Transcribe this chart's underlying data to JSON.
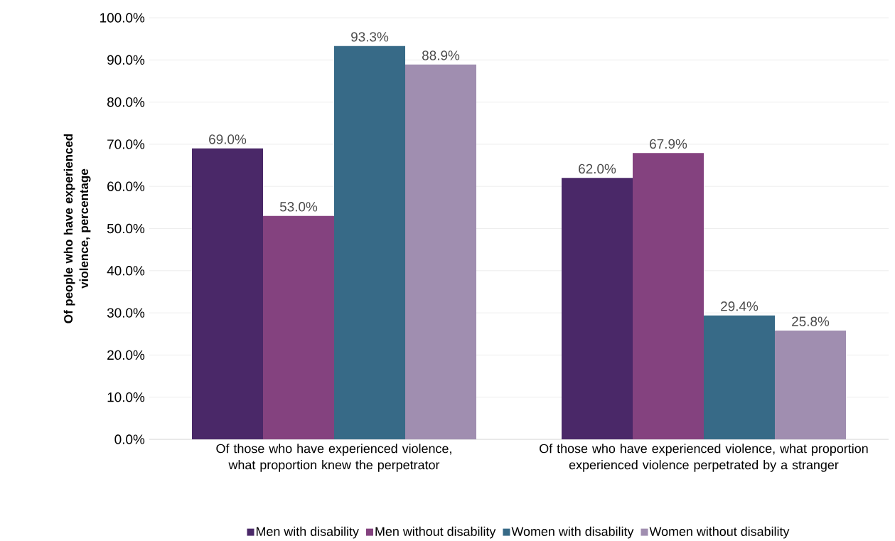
{
  "chart_data": {
    "type": "bar",
    "ylabel": "Of people who have experienced violence, percentage",
    "categories": [
      "Of those who have experienced violence, what proportion knew the perpetrator",
      "Of those who have experienced violence, what proportion experienced violence perpetrated by a stranger"
    ],
    "series": [
      {
        "name": "Men with disability",
        "color": "#4a2868",
        "values": [
          69.0,
          62.0
        ],
        "value_labels": [
          "69.0%",
          "62.0%"
        ]
      },
      {
        "name": "Men without disability",
        "color": "#84427f",
        "values": [
          53.0,
          67.9
        ],
        "value_labels": [
          "53.0%",
          "67.9%"
        ]
      },
      {
        "name": "Women with disability",
        "color": "#376a87",
        "values": [
          93.3,
          29.4
        ],
        "value_labels": [
          "93.3%",
          "29.4%"
        ]
      },
      {
        "name": "Women without disability",
        "color": "#a08eb0",
        "values": [
          88.9,
          25.8
        ],
        "value_labels": [
          "88.9%",
          "25.8%"
        ]
      }
    ],
    "ylim": [
      0,
      100
    ],
    "yticks": [
      {
        "value": 0,
        "label": "0.0%"
      },
      {
        "value": 10,
        "label": "10.0%"
      },
      {
        "value": 20,
        "label": "20.0%"
      },
      {
        "value": 30,
        "label": "30.0%"
      },
      {
        "value": 40,
        "label": "40.0%"
      },
      {
        "value": 50,
        "label": "50.0%"
      },
      {
        "value": 60,
        "label": "60.0%"
      },
      {
        "value": 70,
        "label": "70.0%"
      },
      {
        "value": 80,
        "label": "80.0%"
      },
      {
        "value": 90,
        "label": "90.0%"
      },
      {
        "value": 100,
        "label": "100.0%"
      }
    ],
    "grid": "y",
    "legend": "bottom"
  }
}
